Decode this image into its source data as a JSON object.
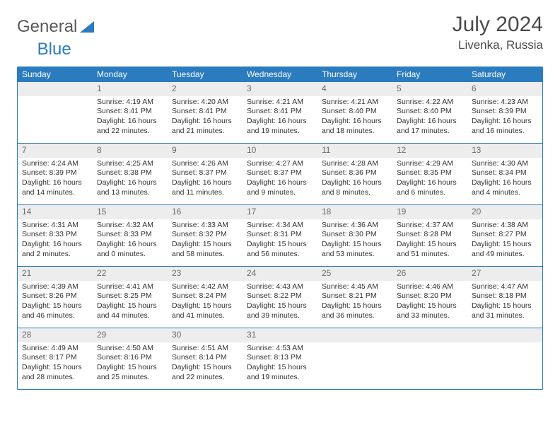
{
  "logo": {
    "text1": "General",
    "text2": "Blue"
  },
  "title": {
    "month": "July 2024",
    "location": "Livenka, Russia"
  },
  "colors": {
    "brand": "#2b7bbf",
    "header_bg": "#ededed",
    "text": "#333333",
    "muted": "#6b6b6b"
  },
  "dayNames": [
    "Sunday",
    "Monday",
    "Tuesday",
    "Wednesday",
    "Thursday",
    "Friday",
    "Saturday"
  ],
  "weeks": [
    [
      null,
      {
        "n": "1",
        "sr": "4:19 AM",
        "ss": "8:41 PM",
        "dl": "16 hours and 22 minutes."
      },
      {
        "n": "2",
        "sr": "4:20 AM",
        "ss": "8:41 PM",
        "dl": "16 hours and 21 minutes."
      },
      {
        "n": "3",
        "sr": "4:21 AM",
        "ss": "8:41 PM",
        "dl": "16 hours and 19 minutes."
      },
      {
        "n": "4",
        "sr": "4:21 AM",
        "ss": "8:40 PM",
        "dl": "16 hours and 18 minutes."
      },
      {
        "n": "5",
        "sr": "4:22 AM",
        "ss": "8:40 PM",
        "dl": "16 hours and 17 minutes."
      },
      {
        "n": "6",
        "sr": "4:23 AM",
        "ss": "8:39 PM",
        "dl": "16 hours and 16 minutes."
      }
    ],
    [
      {
        "n": "7",
        "sr": "4:24 AM",
        "ss": "8:39 PM",
        "dl": "16 hours and 14 minutes."
      },
      {
        "n": "8",
        "sr": "4:25 AM",
        "ss": "8:38 PM",
        "dl": "16 hours and 13 minutes."
      },
      {
        "n": "9",
        "sr": "4:26 AM",
        "ss": "8:37 PM",
        "dl": "16 hours and 11 minutes."
      },
      {
        "n": "10",
        "sr": "4:27 AM",
        "ss": "8:37 PM",
        "dl": "16 hours and 9 minutes."
      },
      {
        "n": "11",
        "sr": "4:28 AM",
        "ss": "8:36 PM",
        "dl": "16 hours and 8 minutes."
      },
      {
        "n": "12",
        "sr": "4:29 AM",
        "ss": "8:35 PM",
        "dl": "16 hours and 6 minutes."
      },
      {
        "n": "13",
        "sr": "4:30 AM",
        "ss": "8:34 PM",
        "dl": "16 hours and 4 minutes."
      }
    ],
    [
      {
        "n": "14",
        "sr": "4:31 AM",
        "ss": "8:33 PM",
        "dl": "16 hours and 2 minutes."
      },
      {
        "n": "15",
        "sr": "4:32 AM",
        "ss": "8:33 PM",
        "dl": "16 hours and 0 minutes."
      },
      {
        "n": "16",
        "sr": "4:33 AM",
        "ss": "8:32 PM",
        "dl": "15 hours and 58 minutes."
      },
      {
        "n": "17",
        "sr": "4:34 AM",
        "ss": "8:31 PM",
        "dl": "15 hours and 56 minutes."
      },
      {
        "n": "18",
        "sr": "4:36 AM",
        "ss": "8:30 PM",
        "dl": "15 hours and 53 minutes."
      },
      {
        "n": "19",
        "sr": "4:37 AM",
        "ss": "8:28 PM",
        "dl": "15 hours and 51 minutes."
      },
      {
        "n": "20",
        "sr": "4:38 AM",
        "ss": "8:27 PM",
        "dl": "15 hours and 49 minutes."
      }
    ],
    [
      {
        "n": "21",
        "sr": "4:39 AM",
        "ss": "8:26 PM",
        "dl": "15 hours and 46 minutes."
      },
      {
        "n": "22",
        "sr": "4:41 AM",
        "ss": "8:25 PM",
        "dl": "15 hours and 44 minutes."
      },
      {
        "n": "23",
        "sr": "4:42 AM",
        "ss": "8:24 PM",
        "dl": "15 hours and 41 minutes."
      },
      {
        "n": "24",
        "sr": "4:43 AM",
        "ss": "8:22 PM",
        "dl": "15 hours and 39 minutes."
      },
      {
        "n": "25",
        "sr": "4:45 AM",
        "ss": "8:21 PM",
        "dl": "15 hours and 36 minutes."
      },
      {
        "n": "26",
        "sr": "4:46 AM",
        "ss": "8:20 PM",
        "dl": "15 hours and 33 minutes."
      },
      {
        "n": "27",
        "sr": "4:47 AM",
        "ss": "8:18 PM",
        "dl": "15 hours and 31 minutes."
      }
    ],
    [
      {
        "n": "28",
        "sr": "4:49 AM",
        "ss": "8:17 PM",
        "dl": "15 hours and 28 minutes."
      },
      {
        "n": "29",
        "sr": "4:50 AM",
        "ss": "8:16 PM",
        "dl": "15 hours and 25 minutes."
      },
      {
        "n": "30",
        "sr": "4:51 AM",
        "ss": "8:14 PM",
        "dl": "15 hours and 22 minutes."
      },
      {
        "n": "31",
        "sr": "4:53 AM",
        "ss": "8:13 PM",
        "dl": "15 hours and 19 minutes."
      },
      null,
      null,
      null
    ]
  ],
  "labels": {
    "sunrise": "Sunrise:",
    "sunset": "Sunset:",
    "daylight": "Daylight:"
  }
}
